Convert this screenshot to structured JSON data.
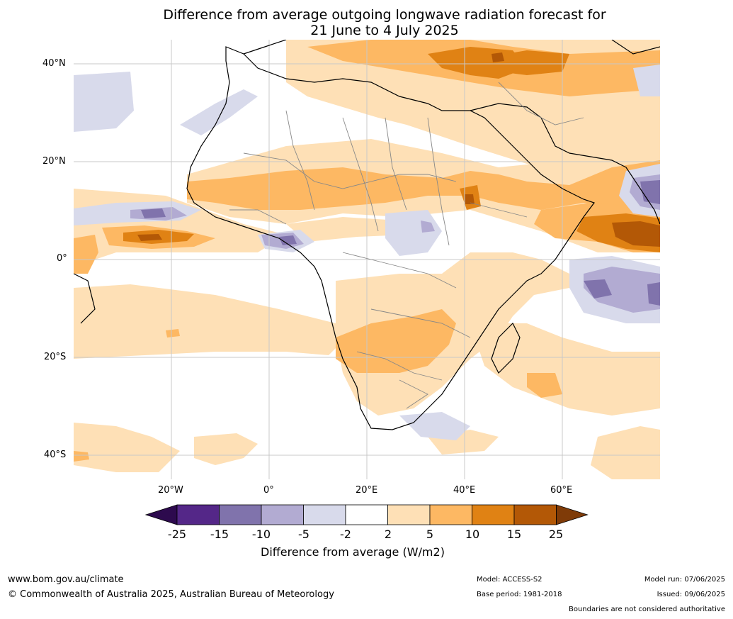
{
  "title": {
    "line1": "Difference from average outgoing longwave radiation forecast for",
    "line2": "21 June to 4 July 2025"
  },
  "axes": {
    "lat_labels": [
      "40°N",
      "20°N",
      "0°",
      "20°S",
      "40°S"
    ],
    "lon_labels": [
      "20°W",
      "0°",
      "20°E",
      "40°E",
      "60°E"
    ]
  },
  "colorbar": {
    "title": "Difference from average (W/m2)",
    "tick_labels": [
      "-25",
      "-15",
      "-10",
      "-5",
      "-2",
      "2",
      "5",
      "10",
      "15",
      "25"
    ],
    "colors": [
      "#2d0a4e",
      "#542788",
      "#8073ac",
      "#b2abd2",
      "#d8daeb",
      "#ffffff",
      "#fee0b6",
      "#fdb863",
      "#e08214",
      "#b35806",
      "#7f3b08"
    ]
  },
  "footer": {
    "website": "www.bom.gov.au/climate",
    "copyright": "© Commonwealth of Australia 2025, Australian Bureau of Meteorology",
    "model": "Model: ACCESS-S2",
    "base_period": "Base period: 1981-2018",
    "model_run": "Model run: 07/06/2025",
    "issued": "Issued: 09/06/2025",
    "disclaimer": "Boundaries are not considered authoritative"
  }
}
